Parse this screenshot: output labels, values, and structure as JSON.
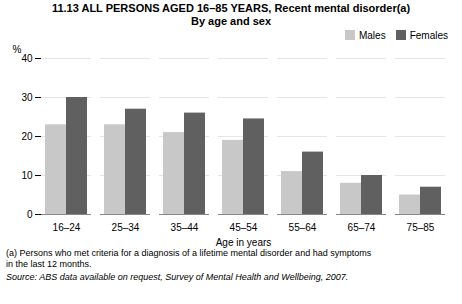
{
  "chart_data": {
    "type": "bar",
    "title": "11.13   ALL PERSONS AGED 16–85 YEARS, Recent mental disorder(a)",
    "subtitle": "By age and sex",
    "categories": [
      "16–24",
      "25–34",
      "35–44",
      "45–54",
      "55–64",
      "65–74",
      "75–85"
    ],
    "series": [
      {
        "name": "Males",
        "color": "#c8c8c8",
        "values": [
          23,
          23,
          21,
          19,
          11,
          8,
          5
        ]
      },
      {
        "name": "Females",
        "color": "#606060",
        "values": [
          30,
          27,
          26,
          24.5,
          16,
          10,
          7
        ]
      }
    ],
    "xlabel": "Age in years",
    "ylabel": "%",
    "ylim": [
      0,
      40
    ],
    "yticks": [
      0,
      10,
      20,
      30,
      40
    ],
    "grid": true,
    "legend": "upper right",
    "footnotes": [
      "(a) Persons who met criteria for a diagnosis of a lifetime mental disorder and had symptoms",
      "in the last 12 months."
    ],
    "source": "Source: ABS data available on request,  Survey of Mental Health and Wellbeing, 2007."
  }
}
